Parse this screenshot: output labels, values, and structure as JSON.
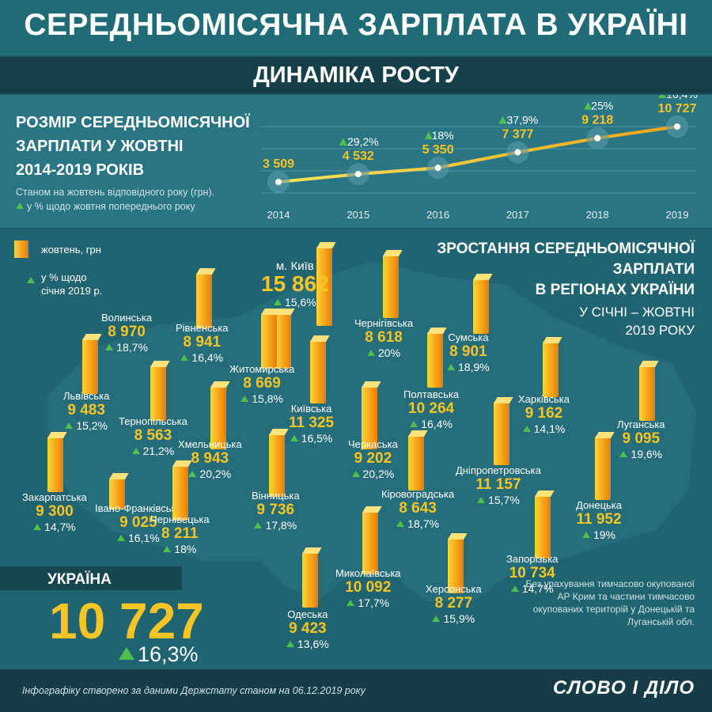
{
  "title": "СЕРЕДНЬОМІСЯЧНА ЗАРПЛАТА В УКРАЇНІ",
  "subtitle": "ДИНАМІКА РОСТУ",
  "chart": {
    "heading": [
      "РОЗМІР СЕРЕДНЬОМІСЯЧНОЇ",
      "ЗАРПЛАТИ У ЖОВТНІ",
      "2014-2019 РОКІВ"
    ],
    "note1": "Станом на жовтень відповідного року (грн).",
    "note2": "у % щодо жовтня попереднього року"
  },
  "chart_data": {
    "type": "line",
    "x": [
      "2014",
      "2015",
      "2016",
      "2017",
      "2018",
      "2019"
    ],
    "values": [
      3509,
      4532,
      5350,
      7377,
      9218,
      10727
    ],
    "value_labels": [
      "3 509",
      "4 532",
      "5 350",
      "7 377",
      "9 218",
      "10 727"
    ],
    "growth": [
      "",
      "29,2%",
      "18%",
      "37,9%",
      "25%",
      "16,4%"
    ],
    "colors": {
      "line": "#f6a516",
      "line_start": "#fbe35a"
    }
  },
  "legend": {
    "bar_label": "жовтень, грн",
    "growth_label": "у % щодо",
    "growth_label2": "січня 2019 р."
  },
  "regions_title": [
    "ЗРОСТАННЯ СЕРЕДНЬОМІСЯЧНОЇ",
    "ЗАРПЛАТИ",
    "В РЕГІОНАХ УКРАЇНИ"
  ],
  "regions_period": [
    "У СІЧНІ – ЖОВТНІ",
    "2019 РОКУ"
  ],
  "regions": [
    {
      "name": "м. Київ",
      "value": "15 862",
      "pct": "15,6%"
    },
    {
      "name": "Волинська",
      "value": "8 970",
      "pct": "18,7%"
    },
    {
      "name": "Рівненська",
      "value": "8 941",
      "pct": "16,4%"
    },
    {
      "name": "Чернігівська",
      "value": "8 618",
      "pct": "20%"
    },
    {
      "name": "Сумська",
      "value": "8 901",
      "pct": "18,9%"
    },
    {
      "name": "Житомирська",
      "value": "8 669",
      "pct": "15,8%"
    },
    {
      "name": "Львівська",
      "value": "9 483",
      "pct": "15,2%"
    },
    {
      "name": "Київська",
      "value": "11 325",
      "pct": "16,5%"
    },
    {
      "name": "Полтавська",
      "value": "10 264",
      "pct": "16,4%"
    },
    {
      "name": "Харківська",
      "value": "9 162",
      "pct": "14,1%"
    },
    {
      "name": "Тернопільська",
      "value": "8 563",
      "pct": "21,2%"
    },
    {
      "name": "Хмельницька",
      "value": "8 943",
      "pct": "20,2%"
    },
    {
      "name": "Черкаська",
      "value": "9 202",
      "pct": "20,2%"
    },
    {
      "name": "Луганська",
      "value": "9 095",
      "pct": "19,6%"
    },
    {
      "name": "Закарпатська",
      "value": "9 300",
      "pct": "14,7%"
    },
    {
      "name": "Вінницька",
      "value": "9 736",
      "pct": "17,8%"
    },
    {
      "name": "Кіровоградська",
      "value": "8 643",
      "pct": "18,7%"
    },
    {
      "name": "Дніпропетровська",
      "value": "11 157",
      "pct": "15,7%"
    },
    {
      "name": "Івано-Франківська",
      "value": "9 025",
      "pct": "16,1%"
    },
    {
      "name": "Чернівецька",
      "value": "8 211",
      "pct": "18%"
    },
    {
      "name": "Донецька",
      "value": "11 952",
      "pct": "19%"
    },
    {
      "name": "Миколаївська",
      "value": "10 092",
      "pct": "17,7%"
    },
    {
      "name": "Запорізька",
      "value": "10 734",
      "pct": "14,7%"
    },
    {
      "name": "Херсонська",
      "value": "8 277",
      "pct": "15,9%"
    },
    {
      "name": "Одеська",
      "value": "9 423",
      "pct": "13,6%"
    }
  ],
  "ukraine": {
    "label": "УКРАЇНА",
    "value": "10 727",
    "pct": "16,3%"
  },
  "footnote": "Без урахування тимчасово окупованої АР Крим та частини тимчасово окупованих територій у Донецькій та Луганській обл.",
  "source": "Інфографіку створено за даними Держстату станом на 06.12.2019 року",
  "logo": "СЛОВО І ДІЛО",
  "colors": {
    "accent": "#f6c524",
    "growth": "#4fc04b",
    "background": "#1e5a66"
  }
}
